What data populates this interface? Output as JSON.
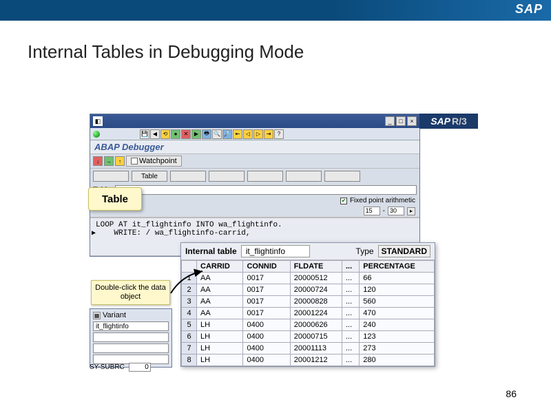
{
  "slide": {
    "title": "Internal Tables in Debugging Mode",
    "page": "86",
    "logo": "SAP"
  },
  "sapwin": {
    "brand": "SAP",
    "brand_suffix": "R/3",
    "subtitle": "ABAP Debugger",
    "watchpoint": "Watchpoint",
    "tab_active": "Table",
    "table_label": "Table",
    "fixed_point": "Fixed point arithmetic",
    "range_from": "15",
    "range_to": "30",
    "code_line1": "LOOP AT it_flightinfo INTO wa_flightinfo.",
    "code_line2": "    WRITE: / wa_flightinfo-carrid,"
  },
  "callouts": {
    "table": "Table",
    "hint": "Double-click the data object"
  },
  "variant": {
    "label": "Variant",
    "value": "it_flightinfo",
    "sysubrc_label": "SY-SUBRC",
    "sysubrc_val": "0"
  },
  "itable": {
    "label": "Internal table",
    "name": "it_flightinfo",
    "type_label": "Type",
    "type_value": "STANDARD",
    "columns": [
      "CARRID",
      "CONNID",
      "FLDATE",
      "...",
      "PERCENTAGE"
    ],
    "rows": [
      [
        "1",
        "AA",
        "0017",
        "20000512",
        "...",
        "66"
      ],
      [
        "2",
        "AA",
        "0017",
        "20000724",
        "...",
        "120"
      ],
      [
        "3",
        "AA",
        "0017",
        "20000828",
        "...",
        "560"
      ],
      [
        "4",
        "AA",
        "0017",
        "20001224",
        "...",
        "470"
      ],
      [
        "5",
        "LH",
        "0400",
        "20000626",
        "...",
        "240"
      ],
      [
        "6",
        "LH",
        "0400",
        "20000715",
        "...",
        "123"
      ],
      [
        "7",
        "LH",
        "0400",
        "20001113",
        "...",
        "273"
      ],
      [
        "8",
        "LH",
        "0400",
        "20001212",
        "...",
        "280"
      ]
    ]
  }
}
